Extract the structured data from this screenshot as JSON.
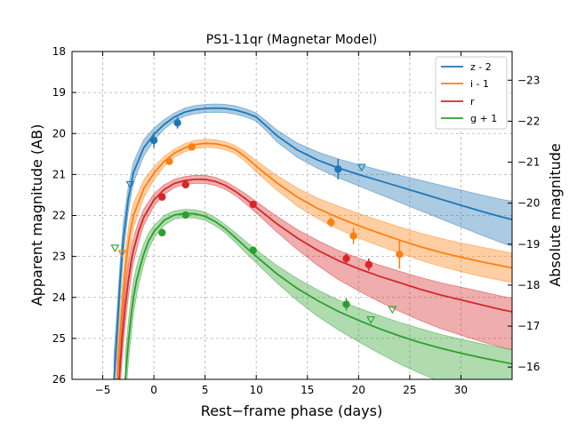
{
  "chart_data": {
    "type": "line",
    "title": "PS1-11qr (Magnetar Model)",
    "xlabel": "Rest−frame phase (days)",
    "ylabel": "Apparent magnitude (AB)",
    "ylabel_right": "Absolute magnitude",
    "xlim": [
      -8,
      35
    ],
    "ylim": [
      26,
      18
    ],
    "x_ticks": [
      -5,
      0,
      5,
      10,
      15,
      20,
      25,
      30
    ],
    "x_tick_labels": [
      "−5",
      "0",
      "5",
      "10",
      "15",
      "20",
      "25",
      "30"
    ],
    "y_ticks": [
      18,
      19,
      20,
      21,
      22,
      23,
      24,
      25,
      26
    ],
    "y_tick_labels": [
      "18",
      "19",
      "20",
      "21",
      "22",
      "23",
      "24",
      "25",
      "26"
    ],
    "y2_ticks": [
      -23,
      -22,
      -21,
      -20,
      -19,
      -18,
      -17,
      -16
    ],
    "y2_tick_labels": [
      "−23",
      "−22",
      "−21",
      "−20",
      "−19",
      "−18",
      "−17",
      "−16"
    ],
    "y2_offset": -41.7,
    "grid": true,
    "legend_position": "top-right",
    "series": [
      {
        "name": "z - 2",
        "color": "#1f77b4",
        "model_t": [
          -3.9,
          -3.6,
          -3.3,
          -3.0,
          -2.5,
          -2.0,
          -1.0,
          0.0,
          1.0,
          2.0,
          3.0,
          4.0,
          5.0,
          6.0,
          7.0,
          8.0,
          9.0,
          10.0,
          11.0,
          12.0,
          14.0,
          16.0,
          18.0,
          20.0,
          22.0,
          24.0,
          26.0,
          28.0,
          30.0,
          32.0,
          34.0,
          35.0
        ],
        "model_m": [
          26.0,
          24.8,
          23.6,
          22.6,
          21.6,
          20.95,
          20.35,
          20.02,
          19.78,
          19.6,
          19.48,
          19.42,
          19.39,
          19.38,
          19.39,
          19.43,
          19.5,
          19.6,
          19.82,
          20.05,
          20.4,
          20.65,
          20.84,
          21.0,
          21.15,
          21.3,
          21.45,
          21.6,
          21.75,
          21.9,
          22.04,
          22.1
        ],
        "band_hi": [
          0.6,
          0.5,
          0.45,
          0.4,
          0.3,
          0.25,
          0.2,
          0.15,
          0.12,
          0.1,
          0.1,
          0.1,
          0.1,
          0.1,
          0.1,
          0.1,
          0.1,
          0.1,
          0.12,
          0.14,
          0.17,
          0.2,
          0.22,
          0.24,
          0.26,
          0.28,
          0.31,
          0.34,
          0.37,
          0.4,
          0.43,
          0.45
        ],
        "band_lo": [
          0.6,
          0.5,
          0.45,
          0.4,
          0.3,
          0.25,
          0.2,
          0.15,
          0.12,
          0.1,
          0.1,
          0.1,
          0.1,
          0.1,
          0.1,
          0.1,
          0.1,
          0.1,
          0.12,
          0.15,
          0.18,
          0.2,
          0.24,
          0.28,
          0.33,
          0.38,
          0.43,
          0.48,
          0.53,
          0.58,
          0.63,
          0.65
        ],
        "points": [
          {
            "t": 0.0,
            "m": 20.17,
            "err": 0.18
          },
          {
            "t": 2.3,
            "m": 19.74,
            "err": 0.14
          },
          {
            "t": 18.0,
            "m": 20.87,
            "err": 0.25
          }
        ],
        "upper_limits": [
          {
            "t": -2.3,
            "m": 21.25
          },
          {
            "t": 20.3,
            "m": 20.83
          }
        ]
      },
      {
        "name": "i - 1",
        "color": "#ff7f0e",
        "model_t": [
          -3.6,
          -3.3,
          -3.0,
          -2.7,
          -2.4,
          -2.0,
          -1.0,
          0.0,
          1.0,
          2.0,
          3.0,
          4.0,
          5.0,
          6.0,
          7.0,
          8.0,
          9.0,
          10.0,
          12.0,
          14.0,
          16.0,
          18.0,
          20.0,
          22.0,
          24.0,
          26.0,
          28.0,
          30.0,
          32.0,
          34.0,
          35.0
        ],
        "model_m": [
          26.0,
          24.9,
          23.9,
          23.1,
          22.5,
          22.0,
          21.35,
          20.97,
          20.68,
          20.48,
          20.35,
          20.27,
          20.24,
          20.25,
          20.3,
          20.4,
          20.58,
          20.8,
          21.2,
          21.55,
          21.83,
          22.05,
          22.25,
          22.43,
          22.6,
          22.76,
          22.9,
          23.02,
          23.13,
          23.23,
          23.28
        ],
        "band_hi": [
          0.6,
          0.5,
          0.45,
          0.4,
          0.35,
          0.3,
          0.22,
          0.16,
          0.12,
          0.1,
          0.1,
          0.1,
          0.1,
          0.1,
          0.1,
          0.1,
          0.12,
          0.14,
          0.18,
          0.22,
          0.25,
          0.28,
          0.3,
          0.31,
          0.32,
          0.33,
          0.34,
          0.35,
          0.36,
          0.36,
          0.36
        ],
        "band_lo": [
          0.6,
          0.5,
          0.45,
          0.4,
          0.35,
          0.3,
          0.22,
          0.16,
          0.12,
          0.1,
          0.1,
          0.1,
          0.1,
          0.1,
          0.1,
          0.1,
          0.12,
          0.14,
          0.18,
          0.22,
          0.25,
          0.28,
          0.3,
          0.31,
          0.32,
          0.33,
          0.34,
          0.35,
          0.36,
          0.36,
          0.36
        ],
        "points": [
          {
            "t": 1.5,
            "m": 20.68,
            "err": 0.05
          },
          {
            "t": 3.7,
            "m": 20.33,
            "err": 0.05
          },
          {
            "t": 17.3,
            "m": 22.17,
            "err": 0.12
          },
          {
            "t": 19.5,
            "m": 22.5,
            "err": 0.2
          },
          {
            "t": 24.0,
            "m": 22.95,
            "err": 0.35
          }
        ],
        "upper_limits": [
          {
            "t": -3.1,
            "m": 22.93
          }
        ]
      },
      {
        "name": "r",
        "color": "#d62728",
        "model_t": [
          -3.4,
          -3.1,
          -2.8,
          -2.5,
          -2.2,
          -2.0,
          -1.5,
          -1.0,
          0.0,
          1.0,
          2.0,
          3.0,
          4.0,
          5.0,
          6.0,
          7.0,
          8.0,
          9.0,
          10.0,
          12.0,
          14.0,
          16.0,
          18.0,
          20.0,
          22.0,
          24.0,
          26.0,
          28.0,
          30.0,
          32.0,
          34.0,
          35.0
        ],
        "model_m": [
          26.0,
          25.0,
          24.2,
          23.6,
          23.1,
          22.85,
          22.4,
          22.05,
          21.62,
          21.37,
          21.22,
          21.15,
          21.12,
          21.12,
          21.17,
          21.27,
          21.42,
          21.6,
          21.8,
          22.2,
          22.55,
          22.85,
          23.1,
          23.3,
          23.48,
          23.64,
          23.8,
          23.94,
          24.06,
          24.18,
          24.3,
          24.35
        ],
        "band_hi": [
          0.6,
          0.5,
          0.45,
          0.4,
          0.35,
          0.3,
          0.25,
          0.2,
          0.15,
          0.12,
          0.1,
          0.1,
          0.1,
          0.1,
          0.1,
          0.1,
          0.1,
          0.12,
          0.14,
          0.18,
          0.21,
          0.24,
          0.25,
          0.26,
          0.27,
          0.28,
          0.29,
          0.3,
          0.31,
          0.32,
          0.33,
          0.33
        ],
        "band_lo": [
          0.6,
          0.5,
          0.45,
          0.4,
          0.35,
          0.3,
          0.25,
          0.2,
          0.15,
          0.12,
          0.1,
          0.1,
          0.1,
          0.1,
          0.1,
          0.1,
          0.1,
          0.12,
          0.14,
          0.2,
          0.28,
          0.37,
          0.46,
          0.54,
          0.62,
          0.7,
          0.76,
          0.82,
          0.86,
          0.9,
          0.92,
          0.92
        ],
        "points": [
          {
            "t": 0.8,
            "m": 21.55,
            "err": 0.06
          },
          {
            "t": 3.1,
            "m": 21.25,
            "err": 0.06
          },
          {
            "t": 9.7,
            "m": 21.73,
            "err": 0.08
          },
          {
            "t": 18.8,
            "m": 23.05,
            "err": 0.13
          },
          {
            "t": 21.0,
            "m": 23.2,
            "err": 0.15
          }
        ],
        "upper_limits": []
      },
      {
        "name": "g + 1",
        "color": "#2ca02c",
        "model_t": [
          -2.8,
          -2.5,
          -2.2,
          -2.0,
          -1.7,
          -1.4,
          -1.0,
          -0.5,
          0.0,
          1.0,
          2.0,
          3.0,
          4.0,
          5.0,
          6.0,
          7.0,
          8.0,
          9.0,
          10.0,
          12.0,
          14.0,
          16.0,
          18.0,
          20.0,
          22.0,
          24.0,
          26.0,
          28.0,
          30.0,
          32.0,
          34.0,
          35.0
        ],
        "model_m": [
          26.0,
          25.1,
          24.4,
          24.0,
          23.6,
          23.3,
          22.95,
          22.62,
          22.4,
          22.12,
          21.99,
          21.95,
          21.96,
          22.02,
          22.15,
          22.33,
          22.55,
          22.78,
          23.0,
          23.42,
          23.78,
          24.08,
          24.34,
          24.56,
          24.76,
          24.94,
          25.1,
          25.24,
          25.36,
          25.47,
          25.57,
          25.62
        ],
        "band_hi": [
          0.6,
          0.5,
          0.45,
          0.4,
          0.35,
          0.3,
          0.25,
          0.2,
          0.15,
          0.12,
          0.1,
          0.1,
          0.1,
          0.1,
          0.1,
          0.1,
          0.12,
          0.14,
          0.16,
          0.2,
          0.24,
          0.26,
          0.28,
          0.3,
          0.32,
          0.33,
          0.34,
          0.34,
          0.34,
          0.34,
          0.34,
          0.34
        ],
        "band_lo": [
          0.6,
          0.5,
          0.45,
          0.4,
          0.35,
          0.3,
          0.25,
          0.2,
          0.15,
          0.12,
          0.1,
          0.1,
          0.1,
          0.1,
          0.1,
          0.1,
          0.12,
          0.14,
          0.16,
          0.22,
          0.3,
          0.38,
          0.45,
          0.52,
          0.6,
          0.68,
          0.75,
          0.82,
          0.88,
          0.94,
          0.98,
          1.0
        ],
        "points": [
          {
            "t": 0.8,
            "m": 22.42,
            "err": 0.06
          },
          {
            "t": 3.1,
            "m": 21.99,
            "err": 0.06
          },
          {
            "t": 9.7,
            "m": 22.85,
            "err": 0.08
          },
          {
            "t": 18.8,
            "m": 24.17,
            "err": 0.15
          }
        ],
        "upper_limits": [
          {
            "t": -3.8,
            "m": 22.8
          },
          {
            "t": 21.2,
            "m": 24.55
          },
          {
            "t": 23.3,
            "m": 24.3
          }
        ]
      }
    ]
  }
}
